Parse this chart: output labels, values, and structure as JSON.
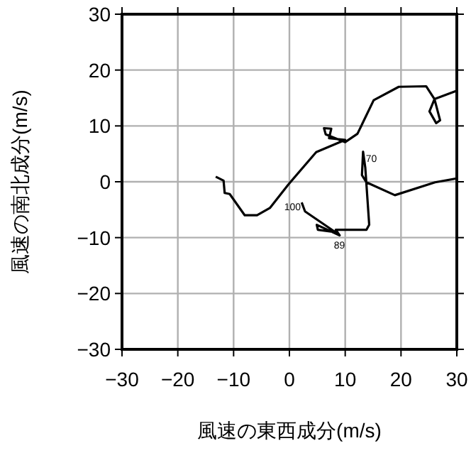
{
  "chart_data": {
    "type": "line",
    "xlabel": "風速の東西成分(m/s)",
    "ylabel": "風速の南北成分(m/s)",
    "xlim": [
      -30,
      30
    ],
    "ylim": [
      -30,
      30
    ],
    "xticks": [
      -30,
      -20,
      -10,
      0,
      10,
      20,
      30
    ],
    "yticks": [
      -30,
      -20,
      -10,
      0,
      10,
      20,
      30
    ],
    "grid": true,
    "series": [
      {
        "color": "#000000",
        "x": [
          -13.2,
          -11.8,
          -11.6,
          -10.7,
          -8,
          -5.8,
          -3.5,
          -0.2,
          4.8,
          10,
          7.1,
          7.5,
          6.2,
          6.5,
          10,
          12.2,
          15.1,
          19.6,
          24.5,
          26,
          25.1,
          26.3,
          27,
          26,
          30,
          null,
          30,
          26.1,
          18.9,
          13.8,
          13,
          13.2,
          13.6,
          14.3,
          13.8,
          8.3,
          9,
          4.9,
          5.1,
          8.2,
          2.8,
          2.2
        ],
        "values": [
          0.9,
          0.2,
          -2,
          -2.2,
          -6,
          -6,
          -4.7,
          -0.5,
          5.3,
          7.5,
          7.8,
          9.5,
          9.6,
          8.5,
          7.1,
          8.6,
          14.6,
          17,
          17.1,
          14.8,
          12.6,
          10.5,
          11,
          14.8,
          16.3,
          null,
          0.6,
          -0.1,
          -2.4,
          -0.1,
          1.2,
          5.4,
          2.5,
          -7.7,
          -8.6,
          -8.6,
          -9.6,
          -7.7,
          -8.6,
          -9,
          -5.3,
          -3.7
        ]
      }
    ],
    "annotations": [
      {
        "text": "70",
        "x": 13.2,
        "y": 5.4
      },
      {
        "text": "89",
        "x": 9,
        "y": -9.6
      },
      {
        "text": "100",
        "x": 2.8,
        "y": -5.3
      }
    ]
  }
}
